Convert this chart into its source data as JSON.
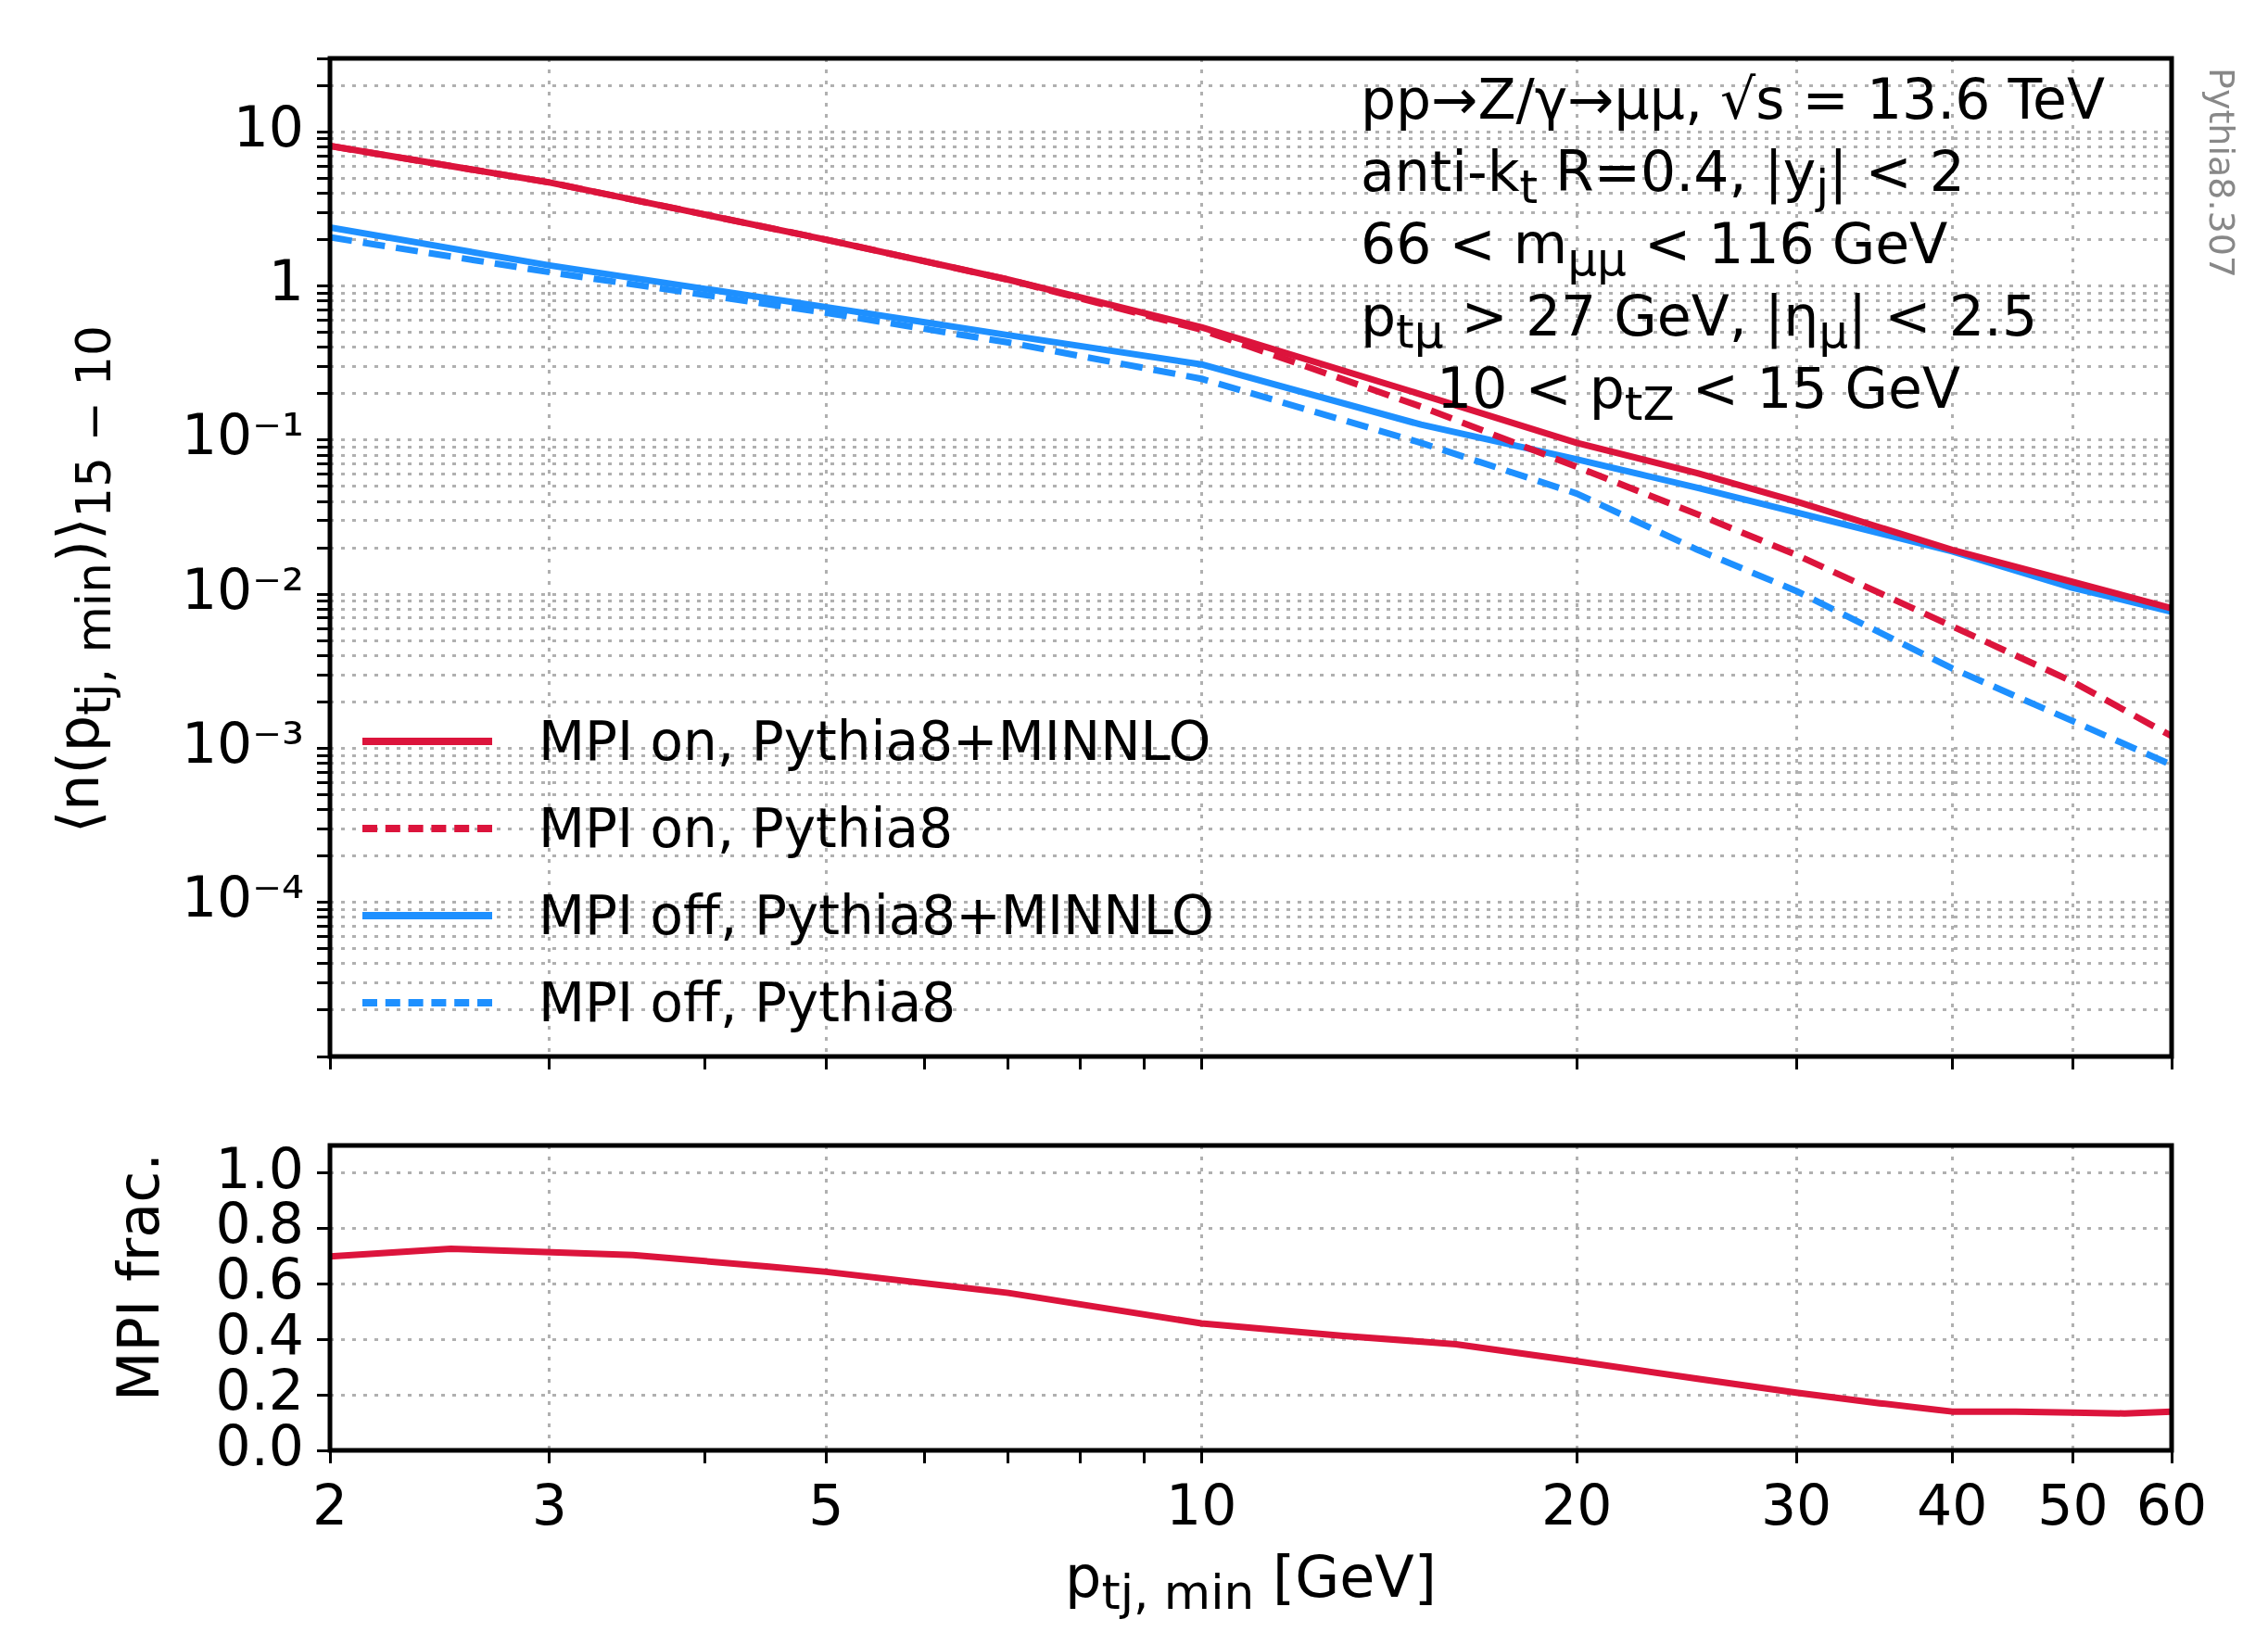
{
  "chart_data": [
    {
      "type": "line",
      "ylabel": "⟨n(p$_{tj, min}$)⟩$_{15 − 10}$",
      "log": "xy",
      "grid": true,
      "legend": "bottom left",
      "tick_labels": "y",
      "xlim": [
        2,
        60
      ],
      "xticks": [
        2,
        3,
        {
          "value": 4,
          "label": null
        },
        5,
        {
          "value": 6,
          "label": null
        },
        {
          "value": 7,
          "label": null
        },
        {
          "value": 8,
          "label": null
        },
        {
          "value": 9,
          "label": null
        },
        10,
        20,
        30,
        40,
        50,
        60
      ],
      "ylim": [
        1e-05,
        30
      ],
      "yticks": [
        {
          "value": 1e-05,
          "label": null
        },
        {
          "value": 2e-05,
          "label": null
        },
        {
          "value": 3e-05,
          "label": null
        },
        {
          "value": 4e-05,
          "label": null
        },
        {
          "value": 5e-05,
          "label": null
        },
        {
          "value": 6e-05,
          "label": null
        },
        {
          "value": 7e-05,
          "label": null
        },
        {
          "value": 8e-05,
          "label": null
        },
        {
          "value": 9e-05,
          "label": null
        },
        {
          "value": 0.0001,
          "label": "10⁻⁴"
        },
        {
          "value": 0.0002,
          "label": null
        },
        {
          "value": 0.0003,
          "label": null
        },
        {
          "value": 0.0004,
          "label": null
        },
        {
          "value": 0.0005,
          "label": null
        },
        {
          "value": 0.0006,
          "label": null
        },
        {
          "value": 0.0007,
          "label": null
        },
        {
          "value": 0.0008,
          "label": null
        },
        {
          "value": 0.0009,
          "label": null
        },
        {
          "value": 0.001,
          "label": "10⁻³"
        },
        {
          "value": 0.002,
          "label": null
        },
        {
          "value": 0.003,
          "label": null
        },
        {
          "value": 0.004,
          "label": null
        },
        {
          "value": 0.005,
          "label": null
        },
        {
          "value": 0.006,
          "label": null
        },
        {
          "value": 0.007,
          "label": null
        },
        {
          "value": 0.008,
          "label": null
        },
        {
          "value": 0.009,
          "label": null
        },
        {
          "value": 0.01,
          "label": "10⁻²"
        },
        {
          "value": 0.02,
          "label": null
        },
        {
          "value": 0.03,
          "label": null
        },
        {
          "value": 0.04,
          "label": null
        },
        {
          "value": 0.05,
          "label": null
        },
        {
          "value": 0.06,
          "label": null
        },
        {
          "value": 0.07,
          "label": null
        },
        {
          "value": 0.08,
          "label": null
        },
        {
          "value": 0.09,
          "label": null
        },
        {
          "value": 0.1,
          "label": "10⁻¹"
        },
        {
          "value": 0.2,
          "label": null
        },
        {
          "value": 0.3,
          "label": null
        },
        {
          "value": 0.4,
          "label": null
        },
        {
          "value": 0.5,
          "label": null
        },
        {
          "value": 0.6,
          "label": null
        },
        {
          "value": 0.7,
          "label": null
        },
        {
          "value": 0.8,
          "label": null
        },
        {
          "value": 0.9,
          "label": null
        },
        {
          "value": 1,
          "label": "1"
        },
        {
          "value": 2,
          "label": null
        },
        {
          "value": 3,
          "label": null
        },
        {
          "value": 4,
          "label": null
        },
        {
          "value": 5,
          "label": null
        },
        {
          "value": 6,
          "label": null
        },
        {
          "value": 7,
          "label": null
        },
        {
          "value": 8,
          "label": null
        },
        {
          "value": 9,
          "label": null
        },
        {
          "value": 10,
          "label": "10"
        },
        {
          "value": 20,
          "label": null
        },
        {
          "value": 30,
          "label": null
        }
      ],
      "x": [
        2,
        3,
        5,
        7,
        10,
        15,
        20,
        25,
        30,
        40,
        50,
        60
      ],
      "series": [
        {
          "name": "MPI on, Pythia8+MINNLO",
          "color": "#dc143c",
          "line_style": "solid",
          "values": [
            8.1,
            4.7,
            2.0,
            1.1,
            0.54,
            0.198,
            0.096,
            0.061,
            0.04,
            0.0194,
            0.012,
            0.0081
          ]
        },
        {
          "name": "MPI on, Pythia8",
          "color": "#dc143c",
          "line_style": "dashed",
          "values": [
            8.1,
            4.7,
            2.0,
            1.1,
            0.52,
            0.165,
            0.067,
            0.033,
            0.018,
            0.0062,
            0.0027,
            0.0012
          ]
        },
        {
          "name": "MPI off, Pythia8+MINNLO",
          "color": "#1e90ff",
          "line_style": "solid",
          "values": [
            2.4,
            1.36,
            0.73,
            0.48,
            0.31,
            0.126,
            0.075,
            0.049,
            0.034,
            0.019,
            0.011,
            0.0077
          ]
        },
        {
          "name": "MPI off, Pythia8",
          "color": "#1e90ff",
          "line_style": "dashed",
          "values": [
            2.07,
            1.23,
            0.67,
            0.43,
            0.25,
            0.096,
            0.045,
            0.0194,
            0.0105,
            0.0033,
            0.0015,
            0.00078
          ]
        }
      ],
      "annotations": [
        "pp→Z/γ→μμ, √s = 13.6 TeV",
        "anti-k$_{t}$ R=0.4, |y$_{j}$| < 2",
        "66 < m$_{μμ}$ < 116 GeV",
        "p$_{tμ}$ > 27 GeV, |η$_{μ}$| < 2.5",
        "10 < p$_{tZ}$ < 15 GeV",
        "Pythia8.307"
      ]
    },
    {
      "type": "line",
      "xlabel": "p$_{tj, min}$ [GeV]",
      "ylabel": "MPI frac.",
      "log": "x",
      "grid": true,
      "xlim": [
        2,
        60
      ],
      "xticks": [
        2,
        3,
        {
          "value": 4,
          "label": null
        },
        5,
        {
          "value": 6,
          "label": null
        },
        {
          "value": 7,
          "label": null
        },
        {
          "value": 8,
          "label": null
        },
        {
          "value": 9,
          "label": null
        },
        10,
        20,
        30,
        40,
        50,
        60
      ],
      "ylim": [
        0,
        1.1
      ],
      "yticks": [
        {
          "value": 0,
          "label": "0.0"
        },
        0.2,
        0.4,
        0.6,
        0.8,
        {
          "value": 1,
          "label": "1.0"
        }
      ],
      "x": [
        2,
        2.5,
        3.5,
        4.5,
        5,
        7,
        10,
        13,
        16,
        20,
        25,
        30,
        35,
        40,
        45,
        50,
        55,
        60
      ],
      "series": [
        {
          "color": "#dc143c",
          "values": [
            0.7,
            0.727,
            0.705,
            0.663,
            0.644,
            0.568,
            0.458,
            0.413,
            0.383,
            0.322,
            0.258,
            0.208,
            0.17,
            0.14,
            0.14,
            0.136,
            0.133,
            0.14
          ]
        }
      ]
    }
  ]
}
